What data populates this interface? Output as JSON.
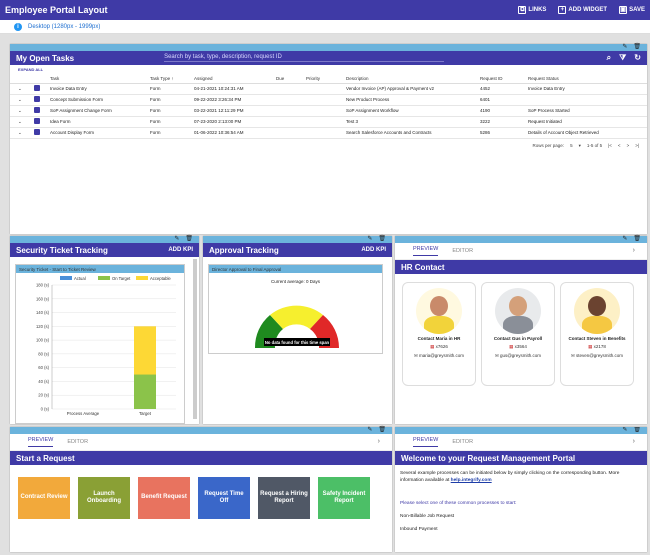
{
  "app": {
    "title": "Employee Portal Layout",
    "links": "LINKS",
    "add_widget": "ADD WIDGET",
    "save": "SAVE",
    "layout_label": "Desktop (1280px - 1999px)"
  },
  "tasks": {
    "title": "My Open Tasks",
    "search_placeholder": "Search by task, type, description, request ID",
    "filter_badge": "1",
    "expand_all": "EXPAND ALL",
    "columns": [
      "Task",
      "Task Type ↑",
      "Assigned",
      "Due",
      "Priority",
      "Description",
      "Request ID",
      "Request Status"
    ],
    "rows": [
      [
        "Invoice Data Entry",
        "Form",
        "04-21-2021 10:24:31 AM",
        "",
        "",
        "Vendor Invoice (AP) Approval & Payment v2",
        "4452",
        "Invoice Data Entry"
      ],
      [
        "Concept Submission Form",
        "Form",
        "09-22-2022 3:26:34 PM",
        "",
        "",
        "New Product Process",
        "6401",
        ""
      ],
      [
        "SoP Assignment Change Form",
        "Form",
        "03-22-2021 12:11:29 PM",
        "",
        "",
        "SoP Assignment Workflow",
        "4190",
        "SoP Process Started"
      ],
      [
        "Idea Form",
        "Form",
        "07-23-2020 2:13:00 PM",
        "",
        "",
        "Test 3",
        "3222",
        "Request Initiated"
      ],
      [
        "Account Display Form",
        "Form",
        "01-06-2022 10:36:54 AM",
        "",
        "",
        "Search Salesforce Accounts and Contracts",
        "5286",
        "Details of Account Object Retrieved"
      ]
    ],
    "rows_per_page_label": "Rows per page:",
    "rows_per_page": "5",
    "range": "1-5 of 5"
  },
  "security": {
    "title": "Security Ticket Tracking",
    "add_kpi": "ADD KPI",
    "chart_title": "Security Ticket - Start to Ticket Review",
    "legend": [
      "Actual",
      "On Target",
      "Acceptable"
    ]
  },
  "approval": {
    "title": "Approval Tracking",
    "add_kpi": "ADD KPI",
    "chart_title": "Director Approval to Final Approval",
    "current_avg": "Current average: 0 Days",
    "no_data": "No data found for this time span"
  },
  "hr": {
    "tab_preview": "PREVIEW",
    "tab_editor": "EDITOR",
    "title": "HR Contact",
    "contacts": [
      {
        "name": "Contact Maria in HR",
        "ext": "x7626",
        "email": "maria@greysmith.com"
      },
      {
        "name": "Contact Gus in Payroll",
        "ext": "x3564",
        "email": "gus@greysmith.com"
      },
      {
        "name": "Contact Steven in Benefits",
        "ext": "x2178",
        "email": "steven@greysmith.com"
      }
    ]
  },
  "start": {
    "tab_preview": "PREVIEW",
    "tab_editor": "EDITOR",
    "title": "Start a Request",
    "tiles": [
      {
        "label": "Contract Review",
        "color": "#f2a93b"
      },
      {
        "label": "Launch Onboarding",
        "color": "#8aa035"
      },
      {
        "label": "Benefit Request",
        "color": "#e8735f"
      },
      {
        "label": "Request Time Off",
        "color": "#3a67c9"
      },
      {
        "label": "Request a Hiring Report",
        "color": "#505866"
      },
      {
        "label": "Safety Incident Report",
        "color": "#4cbf67"
      }
    ]
  },
  "welcome": {
    "tab_preview": "PREVIEW",
    "tab_editor": "EDITOR",
    "title": "Welcome to your Request Management Portal",
    "intro": "Several example processes can be initiated below by simply clicking on the corresponding button. More information available at ",
    "link": "help.integrify.com",
    "select_prompt": "Please select one of these common processes to start:",
    "items": [
      "Non-Billable Job Request",
      "Inbound Payment"
    ]
  },
  "chart_data": {
    "type": "bar",
    "title": "Security Ticket - Start to Ticket Review",
    "categories": [
      "Process Average",
      "Target"
    ],
    "series": [
      {
        "name": "Actual",
        "values": [
          0,
          0
        ]
      },
      {
        "name": "On Target",
        "values": [
          0,
          50
        ]
      },
      {
        "name": "Acceptable",
        "values": [
          0,
          120
        ]
      }
    ],
    "yticks": [
      "0 (s)",
      "20 (s)",
      "40 (s)",
      "60 (s)",
      "80 (s)",
      "100 (s)",
      "120 (s)",
      "140 (s)",
      "160 (s)",
      "180 (s)"
    ],
    "ylim": [
      0,
      180
    ],
    "grid": true,
    "legend": "top",
    "colors": {
      "actual": "#4a90d9",
      "on_target": "#8bc34a",
      "acceptable": "#fdd835"
    }
  }
}
